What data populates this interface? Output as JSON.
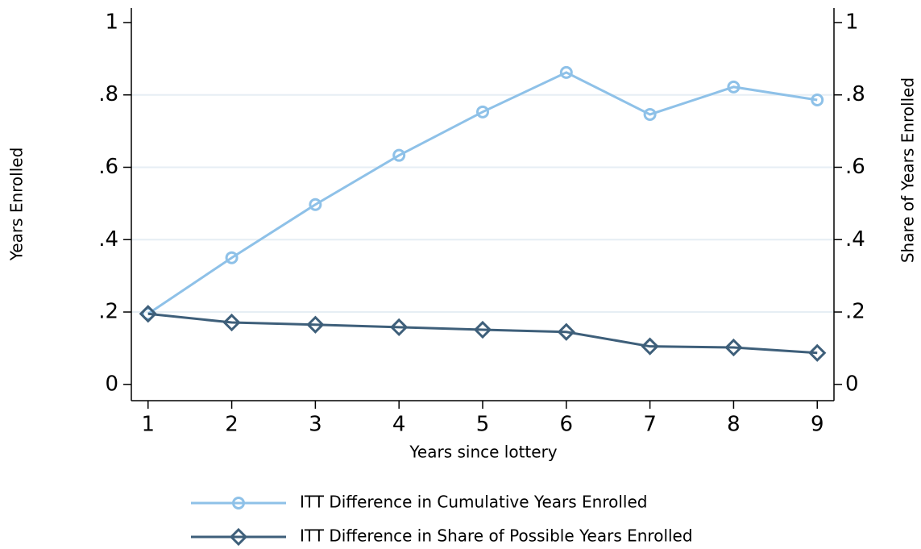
{
  "chart_data": {
    "type": "line",
    "x_label": "Years since lottery",
    "y_label": "Years Enrolled",
    "y2_label": "Share of Years Enrolled",
    "x": [
      1,
      2,
      3,
      4,
      5,
      6,
      7,
      8,
      9
    ],
    "xlim": [
      0.8,
      9.2
    ],
    "xticks": [
      1,
      2,
      3,
      4,
      5,
      6,
      7,
      8,
      9
    ],
    "ylim": [
      -0.045,
      1.04
    ],
    "yticks": [
      0,
      {
        "value": 0.2,
        "label": ".2"
      },
      {
        "value": 0.4,
        "label": ".4"
      },
      {
        "value": 0.6,
        "label": ".6"
      },
      {
        "value": 0.8,
        "label": ".8"
      },
      1
    ],
    "y2lim": [
      -0.045,
      1.04
    ],
    "y2ticks": [
      0,
      {
        "value": 0.2,
        "label": ".2"
      },
      {
        "value": 0.4,
        "label": ".4"
      },
      {
        "value": 0.6,
        "label": ".6"
      },
      {
        "value": 0.8,
        "label": ".8"
      },
      1
    ],
    "grid": true,
    "legend": "bottom",
    "series": [
      {
        "name": "ITT Difference in Cumulative Years Enrolled",
        "color": "#8ec1e8",
        "marker": "circle",
        "values": [
          0.195,
          0.35,
          0.497,
          0.633,
          0.753,
          0.862,
          0.746,
          0.822,
          0.786
        ]
      },
      {
        "name": "ITT Difference in Share of Possible Years Enrolled",
        "color": "#3e5f7a",
        "marker": "diamond",
        "axis": "y2",
        "values": [
          0.195,
          0.171,
          0.165,
          0.158,
          0.151,
          0.145,
          0.105,
          0.102,
          0.087
        ]
      }
    ]
  }
}
